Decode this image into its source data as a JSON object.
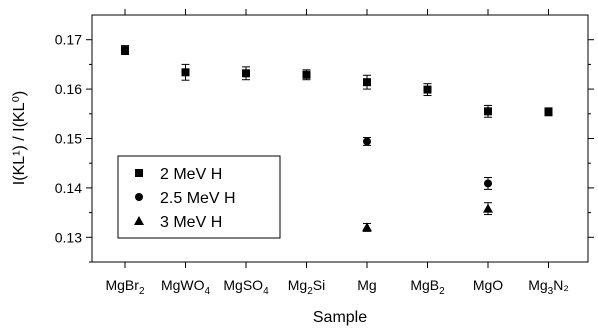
{
  "chart_data": {
    "type": "scatter",
    "title": "",
    "xlabel": "Sample",
    "ylabel": "I(KL¹) / I(KL⁰)",
    "ylim": [
      0.125,
      0.175
    ],
    "yticks": [
      "0.13",
      "0.14",
      "0.15",
      "0.16",
      "0.17"
    ],
    "categories": [
      {
        "base": "MgBr",
        "sub": "2",
        "tail": ""
      },
      {
        "base": "MgWO",
        "sub": "4",
        "tail": ""
      },
      {
        "base": "MgSO",
        "sub": "4",
        "tail": ""
      },
      {
        "base": "Mg",
        "sub": "2",
        "tail": "Si"
      },
      {
        "base": "Mg",
        "sub": "",
        "tail": ""
      },
      {
        "base": "MgB",
        "sub": "2",
        "tail": ""
      },
      {
        "base": "MgO",
        "sub": "",
        "tail": ""
      },
      {
        "base": "Mg",
        "sub": "3",
        "tail": "N₂"
      }
    ],
    "series": [
      {
        "name": "2 MeV H",
        "marker": "square",
        "points": [
          {
            "x": 0,
            "y": 0.1679,
            "err": 0.0009
          },
          {
            "x": 1,
            "y": 0.1634,
            "err": 0.0016
          },
          {
            "x": 2,
            "y": 0.1632,
            "err": 0.0013
          },
          {
            "x": 3,
            "y": 0.1629,
            "err": 0.001
          },
          {
            "x": 4,
            "y": 0.1614,
            "err": 0.0014
          },
          {
            "x": 5,
            "y": 0.1599,
            "err": 0.0012
          },
          {
            "x": 6,
            "y": 0.1555,
            "err": 0.0012
          },
          {
            "x": 7,
            "y": 0.1554,
            "err": 0.0008
          }
        ]
      },
      {
        "name": "2.5 MeV H",
        "marker": "circle",
        "points": [
          {
            "x": 4,
            "y": 0.1494,
            "err": 0.0008
          },
          {
            "x": 6,
            "y": 0.1409,
            "err": 0.0012
          }
        ]
      },
      {
        "name": "3 MeV H",
        "marker": "triangle",
        "points": [
          {
            "x": 4,
            "y": 0.132,
            "err": 0.0008
          },
          {
            "x": 6,
            "y": 0.1358,
            "err": 0.0012
          }
        ]
      }
    ],
    "legend_position": "bottom-left",
    "grid": false
  }
}
